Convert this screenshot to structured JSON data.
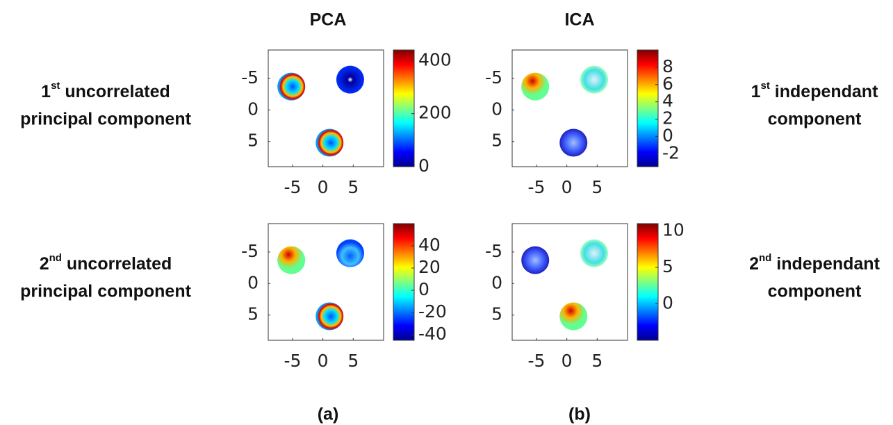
{
  "figure": {
    "columns": [
      "PCA",
      "ICA"
    ],
    "panel_labels": [
      "(a)",
      "(b)"
    ],
    "row_labels_left": [
      {
        "ordinal": "1",
        "suffix": "st",
        "line1": "uncorrelated",
        "line2": "principal component"
      },
      {
        "ordinal": "2",
        "suffix": "nd",
        "line1": "uncorrelated",
        "line2": "principal component"
      }
    ],
    "row_labels_right": [
      {
        "ordinal": "1",
        "suffix": "st",
        "line1": "independant",
        "line2": "component"
      },
      {
        "ordinal": "2",
        "suffix": "nd",
        "line1": "independant",
        "line2": "component"
      }
    ]
  },
  "chart_data": [
    {
      "type": "heatmap",
      "colormap": "jet",
      "xlim": [
        -9,
        10
      ],
      "ylim": [
        -9.5,
        9
      ],
      "y_reversed": true,
      "xticks": [
        -5,
        0,
        5
      ],
      "yticks": [
        -5,
        0,
        5
      ],
      "clim": [
        0,
        440
      ],
      "cticks": [
        0,
        200,
        400
      ]
    },
    {
      "type": "heatmap",
      "colormap": "jet",
      "xlim": [
        -9,
        10
      ],
      "ylim": [
        -9.5,
        9
      ],
      "y_reversed": true,
      "xticks": [
        -5,
        0,
        5
      ],
      "yticks": [
        -5,
        0,
        5
      ],
      "clim": [
        -3.5,
        10
      ],
      "cticks": [
        -2,
        0,
        2,
        4,
        6,
        8
      ]
    },
    {
      "type": "heatmap",
      "colormap": "jet",
      "xlim": [
        -9,
        10
      ],
      "ylim": [
        -9.5,
        9
      ],
      "y_reversed": true,
      "xticks": [
        -5,
        0,
        5
      ],
      "yticks": [
        -5,
        0,
        5
      ],
      "clim": [
        -45,
        60
      ],
      "cticks": [
        -40,
        -20,
        0,
        20,
        40
      ]
    },
    {
      "type": "heatmap",
      "colormap": "jet",
      "xlim": [
        -9,
        10
      ],
      "ylim": [
        -9.5,
        9
      ],
      "y_reversed": true,
      "xticks": [
        -5,
        0,
        5
      ],
      "yticks": [
        -5,
        0,
        5
      ],
      "clim": [
        -5,
        11
      ],
      "cticks": [
        0,
        5,
        10
      ]
    }
  ]
}
